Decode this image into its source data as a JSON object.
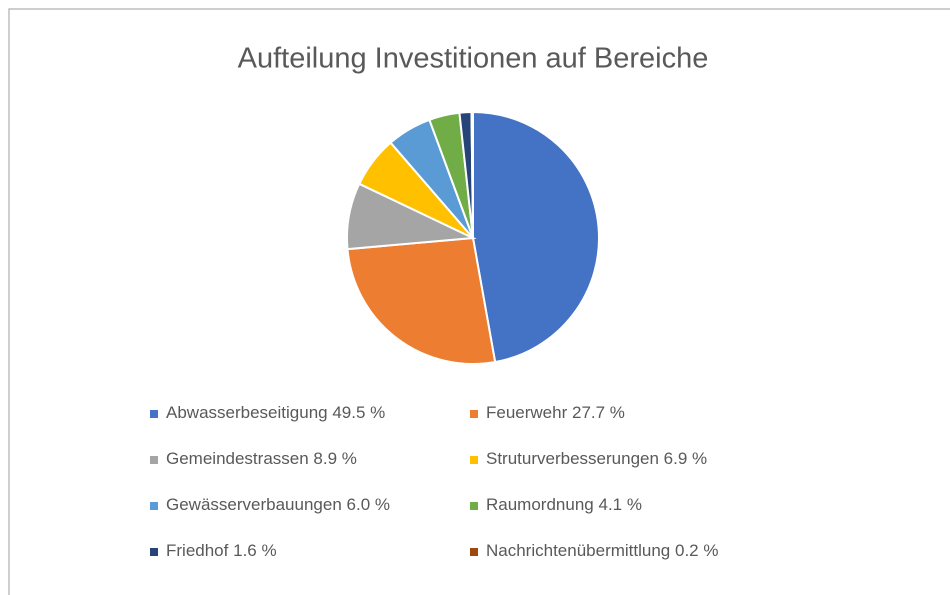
{
  "chart_data": {
    "type": "pie",
    "title": "Aufteilung Investitionen auf Bereiche",
    "categories": [
      "Abwasserbeseitigung",
      "Feuerwehr",
      "Gemeindestrassen",
      "Struturverbesserungen",
      "Gewässerverbauungen",
      "Raumordnung",
      "Friedhof",
      "Nachrichtenübermittlung"
    ],
    "values": [
      49.5,
      27.7,
      8.9,
      6.9,
      6.0,
      4.1,
      1.6,
      0.2
    ],
    "value_labels": [
      "49.5 %",
      "27.7 %",
      "8.9 %",
      "6.9 %",
      "6.0 %",
      "4.1 %",
      "1.6 %",
      "0.2 %"
    ],
    "colors": [
      "#4472c4",
      "#ed7d31",
      "#a5a5a5",
      "#ffc000",
      "#5b9bd5",
      "#70ad47",
      "#264478",
      "#9e480e"
    ],
    "legend": "bottom"
  }
}
